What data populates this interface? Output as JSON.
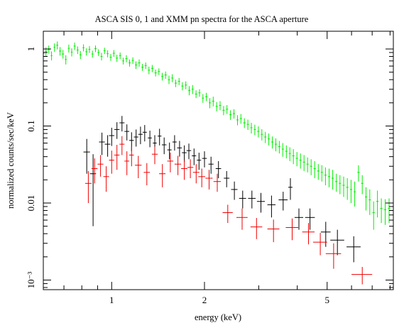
{
  "chart_data": {
    "type": "scatter",
    "title": "ASCA SIS 0, 1 and XMM pn spectra for the ASCA aperture",
    "xlabel": "energy (keV)",
    "ylabel": "normalized counts/sec/keV",
    "x_scale": "log",
    "y_scale": "log",
    "xlim": [
      0.6,
      8.2
    ],
    "ylim": [
      0.00075,
      1.7
    ],
    "x_ticks": [
      {
        "value": 1,
        "label": "1"
      },
      {
        "value": 2,
        "label": "2"
      },
      {
        "value": 5,
        "label": "5"
      }
    ],
    "y_ticks": [
      {
        "value": 1,
        "label": "1"
      },
      {
        "value": 0.1,
        "label": "0.1"
      },
      {
        "value": 0.01,
        "label": "0.01"
      },
      {
        "value": 0.001,
        "label": "10⁻³"
      }
    ],
    "grid": false,
    "legend": "none",
    "series": [
      {
        "color": "#00ee00",
        "note_points": "[energy_keV, counts, x_halfwidth_keV, y_err]",
        "points": [
          [
            0.6,
            0.88,
            0.004,
            0.12
          ],
          [
            0.612,
            0.93,
            0.004,
            0.12
          ],
          [
            0.625,
            0.99,
            0.004,
            0.12
          ],
          [
            0.638,
            0.82,
            0.004,
            0.11
          ],
          [
            0.652,
            1.05,
            0.004,
            0.13
          ],
          [
            0.666,
            1.12,
            0.005,
            0.13
          ],
          [
            0.68,
            0.94,
            0.005,
            0.12
          ],
          [
            0.695,
            0.86,
            0.005,
            0.11
          ],
          [
            0.71,
            0.73,
            0.005,
            0.1
          ],
          [
            0.726,
            1.02,
            0.005,
            0.12
          ],
          [
            0.742,
            0.91,
            0.005,
            0.11
          ],
          [
            0.758,
            1.09,
            0.006,
            0.12
          ],
          [
            0.775,
            0.97,
            0.006,
            0.11
          ],
          [
            0.792,
            0.84,
            0.006,
            0.1
          ],
          [
            0.81,
            1.04,
            0.006,
            0.11
          ],
          [
            0.828,
            0.92,
            0.006,
            0.1
          ],
          [
            0.847,
            0.99,
            0.006,
            0.1
          ],
          [
            0.866,
            0.86,
            0.006,
            0.09
          ],
          [
            0.886,
            1.01,
            0.007,
            0.1
          ],
          [
            0.906,
            0.9,
            0.007,
            0.09
          ],
          [
            0.927,
            0.8,
            0.007,
            0.09
          ],
          [
            0.948,
            0.95,
            0.007,
            0.09
          ],
          [
            0.97,
            0.87,
            0.007,
            0.09
          ],
          [
            0.993,
            0.78,
            0.008,
            0.08
          ],
          [
            1.016,
            0.88,
            0.008,
            0.09
          ],
          [
            1.04,
            0.76,
            0.008,
            0.08
          ],
          [
            1.065,
            0.82,
            0.008,
            0.08
          ],
          [
            1.09,
            0.7,
            0.008,
            0.07
          ],
          [
            1.116,
            0.75,
            0.009,
            0.08
          ],
          [
            1.143,
            0.66,
            0.009,
            0.07
          ],
          [
            1.171,
            0.71,
            0.009,
            0.07
          ],
          [
            1.199,
            0.62,
            0.009,
            0.07
          ],
          [
            1.228,
            0.66,
            0.01,
            0.07
          ],
          [
            1.258,
            0.58,
            0.01,
            0.06
          ],
          [
            1.289,
            0.61,
            0.01,
            0.06
          ],
          [
            1.321,
            0.53,
            0.01,
            0.06
          ],
          [
            1.354,
            0.56,
            0.011,
            0.06
          ],
          [
            1.388,
            0.49,
            0.011,
            0.05
          ],
          [
            1.423,
            0.51,
            0.011,
            0.05
          ],
          [
            1.459,
            0.44,
            0.011,
            0.05
          ],
          [
            1.496,
            0.46,
            0.012,
            0.05
          ],
          [
            1.534,
            0.4,
            0.012,
            0.05
          ],
          [
            1.573,
            0.42,
            0.012,
            0.05
          ],
          [
            1.613,
            0.36,
            0.013,
            0.04
          ],
          [
            1.654,
            0.38,
            0.013,
            0.04
          ],
          [
            1.696,
            0.33,
            0.013,
            0.04
          ],
          [
            1.74,
            0.34,
            0.014,
            0.04
          ],
          [
            1.785,
            0.29,
            0.014,
            0.04
          ],
          [
            1.831,
            0.3,
            0.014,
            0.04
          ],
          [
            1.878,
            0.26,
            0.015,
            0.03
          ],
          [
            1.927,
            0.27,
            0.015,
            0.03
          ],
          [
            1.977,
            0.23,
            0.015,
            0.03
          ],
          [
            2.028,
            0.24,
            0.016,
            0.03
          ],
          [
            2.081,
            0.2,
            0.016,
            0.03
          ],
          [
            2.135,
            0.21,
            0.017,
            0.03
          ],
          [
            2.191,
            0.18,
            0.017,
            0.025
          ],
          [
            2.248,
            0.185,
            0.018,
            0.025
          ],
          [
            2.307,
            0.16,
            0.018,
            0.022
          ],
          [
            2.367,
            0.165,
            0.019,
            0.022
          ],
          [
            2.429,
            0.14,
            0.019,
            0.02
          ],
          [
            2.493,
            0.145,
            0.02,
            0.02
          ],
          [
            2.559,
            0.12,
            0.02,
            0.018
          ],
          [
            2.626,
            0.125,
            0.021,
            0.018
          ],
          [
            2.695,
            0.11,
            0.021,
            0.016
          ],
          [
            2.766,
            0.105,
            0.022,
            0.016
          ],
          [
            2.839,
            0.095,
            0.022,
            0.015
          ],
          [
            2.914,
            0.09,
            0.023,
            0.014
          ],
          [
            2.991,
            0.085,
            0.024,
            0.014
          ],
          [
            3.07,
            0.078,
            0.024,
            0.013
          ],
          [
            3.151,
            0.072,
            0.025,
            0.012
          ],
          [
            3.234,
            0.068,
            0.026,
            0.012
          ],
          [
            3.32,
            0.062,
            0.026,
            0.011
          ],
          [
            3.408,
            0.058,
            0.027,
            0.011
          ],
          [
            3.498,
            0.054,
            0.028,
            0.01
          ],
          [
            3.591,
            0.05,
            0.029,
            0.01
          ],
          [
            3.687,
            0.047,
            0.029,
            0.009
          ],
          [
            3.785,
            0.044,
            0.03,
            0.009
          ],
          [
            3.886,
            0.041,
            0.031,
            0.009
          ],
          [
            3.99,
            0.038,
            0.032,
            0.008
          ],
          [
            4.097,
            0.036,
            0.033,
            0.008
          ],
          [
            4.207,
            0.034,
            0.034,
            0.008
          ],
          [
            4.32,
            0.032,
            0.035,
            0.007
          ],
          [
            4.437,
            0.03,
            0.036,
            0.007
          ],
          [
            4.557,
            0.028,
            0.037,
            0.007
          ],
          [
            4.68,
            0.026,
            0.038,
            0.006
          ],
          [
            4.807,
            0.025,
            0.039,
            0.006
          ],
          [
            4.938,
            0.023,
            0.04,
            0.006
          ],
          [
            5.073,
            0.022,
            0.041,
            0.006
          ],
          [
            5.212,
            0.021,
            0.042,
            0.006
          ],
          [
            5.355,
            0.019,
            0.043,
            0.005
          ],
          [
            5.503,
            0.018,
            0.044,
            0.005
          ],
          [
            5.656,
            0.017,
            0.046,
            0.005
          ],
          [
            5.814,
            0.016,
            0.047,
            0.005
          ],
          [
            5.977,
            0.015,
            0.048,
            0.005
          ],
          [
            6.145,
            0.014,
            0.05,
            0.005
          ],
          [
            6.319,
            0.025,
            0.051,
            0.006
          ],
          [
            6.499,
            0.018,
            0.053,
            0.005
          ],
          [
            6.685,
            0.012,
            0.054,
            0.004
          ],
          [
            6.877,
            0.011,
            0.056,
            0.004
          ],
          [
            7.076,
            0.0075,
            0.06,
            0.003
          ],
          [
            7.282,
            0.0105,
            0.062,
            0.004
          ],
          [
            7.495,
            0.0085,
            0.064,
            0.003
          ],
          [
            7.716,
            0.0082,
            0.066,
            0.003
          ],
          [
            7.945,
            0.0085,
            0.068,
            0.003
          ]
        ]
      },
      {
        "color": "#000000",
        "note_points": "[energy_keV, counts, x_halfwidth_keV, y_err]",
        "points": [
          [
            0.83,
            0.046,
            0.02,
            0.022
          ],
          [
            0.87,
            0.024,
            0.02,
            0.019
          ],
          [
            0.93,
            0.062,
            0.02,
            0.02
          ],
          [
            0.97,
            0.058,
            0.02,
            0.018
          ],
          [
            1.0,
            0.075,
            0.02,
            0.02
          ],
          [
            1.04,
            0.09,
            0.02,
            0.022
          ],
          [
            1.08,
            0.11,
            0.02,
            0.025
          ],
          [
            1.12,
            0.085,
            0.02,
            0.02
          ],
          [
            1.16,
            0.065,
            0.02,
            0.018
          ],
          [
            1.2,
            0.072,
            0.02,
            0.018
          ],
          [
            1.24,
            0.078,
            0.02,
            0.02
          ],
          [
            1.28,
            0.083,
            0.02,
            0.02
          ],
          [
            1.33,
            0.07,
            0.02,
            0.017
          ],
          [
            1.38,
            0.06,
            0.02,
            0.016
          ],
          [
            1.43,
            0.074,
            0.02,
            0.018
          ],
          [
            1.48,
            0.057,
            0.025,
            0.014
          ],
          [
            1.54,
            0.049,
            0.025,
            0.012
          ],
          [
            1.6,
            0.062,
            0.025,
            0.014
          ],
          [
            1.66,
            0.052,
            0.03,
            0.012
          ],
          [
            1.72,
            0.045,
            0.03,
            0.011
          ],
          [
            1.78,
            0.048,
            0.03,
            0.011
          ],
          [
            1.85,
            0.041,
            0.03,
            0.01
          ],
          [
            1.92,
            0.036,
            0.03,
            0.009
          ],
          [
            2.0,
            0.038,
            0.035,
            0.009
          ],
          [
            2.1,
            0.032,
            0.04,
            0.008
          ],
          [
            2.22,
            0.028,
            0.045,
            0.007
          ],
          [
            2.36,
            0.021,
            0.05,
            0.005
          ],
          [
            2.5,
            0.015,
            0.06,
            0.004
          ],
          [
            2.66,
            0.0115,
            0.07,
            0.003
          ],
          [
            2.85,
            0.0115,
            0.08,
            0.003
          ],
          [
            3.05,
            0.0105,
            0.09,
            0.003
          ],
          [
            3.3,
            0.0095,
            0.1,
            0.003
          ],
          [
            3.6,
            0.011,
            0.12,
            0.003
          ],
          [
            3.8,
            0.016,
            0.06,
            0.005
          ],
          [
            4.05,
            0.0065,
            0.13,
            0.002
          ],
          [
            4.4,
            0.0065,
            0.16,
            0.002
          ],
          [
            4.95,
            0.0042,
            0.18,
            0.0015
          ],
          [
            5.4,
            0.0033,
            0.28,
            0.0012
          ],
          [
            6.1,
            0.0027,
            0.32,
            0.001
          ]
        ]
      },
      {
        "color": "#ee0000",
        "note_points": "[energy_keV, counts, x_halfwidth_keV, y_err]",
        "points": [
          [
            0.84,
            0.018,
            0.02,
            0.008
          ],
          [
            0.88,
            0.028,
            0.02,
            0.01
          ],
          [
            0.92,
            0.032,
            0.02,
            0.01
          ],
          [
            0.96,
            0.022,
            0.02,
            0.008
          ],
          [
            1.0,
            0.036,
            0.02,
            0.012
          ],
          [
            1.04,
            0.042,
            0.02,
            0.015
          ],
          [
            1.08,
            0.058,
            0.02,
            0.016
          ],
          [
            1.12,
            0.035,
            0.02,
            0.012
          ],
          [
            1.16,
            0.042,
            0.02,
            0.012
          ],
          [
            1.22,
            0.031,
            0.03,
            0.01
          ],
          [
            1.3,
            0.025,
            0.03,
            0.008
          ],
          [
            1.38,
            0.043,
            0.03,
            0.011
          ],
          [
            1.46,
            0.024,
            0.035,
            0.008
          ],
          [
            1.55,
            0.035,
            0.035,
            0.01
          ],
          [
            1.64,
            0.032,
            0.04,
            0.009
          ],
          [
            1.72,
            0.028,
            0.04,
            0.008
          ],
          [
            1.8,
            0.029,
            0.04,
            0.008
          ],
          [
            1.88,
            0.025,
            0.045,
            0.007
          ],
          [
            1.96,
            0.022,
            0.05,
            0.006
          ],
          [
            2.07,
            0.021,
            0.055,
            0.006
          ],
          [
            2.2,
            0.019,
            0.06,
            0.005
          ],
          [
            2.38,
            0.0075,
            0.09,
            0.002
          ],
          [
            2.65,
            0.0065,
            0.11,
            0.002
          ],
          [
            2.95,
            0.0049,
            0.13,
            0.0015
          ],
          [
            3.35,
            0.0046,
            0.15,
            0.0015
          ],
          [
            3.85,
            0.0048,
            0.18,
            0.0015
          ],
          [
            4.35,
            0.0042,
            0.2,
            0.0013
          ],
          [
            4.75,
            0.0031,
            0.25,
            0.001
          ],
          [
            5.25,
            0.0022,
            0.3,
            0.0008
          ],
          [
            6.5,
            0.00118,
            0.5,
            0.0003
          ]
        ]
      }
    ]
  }
}
